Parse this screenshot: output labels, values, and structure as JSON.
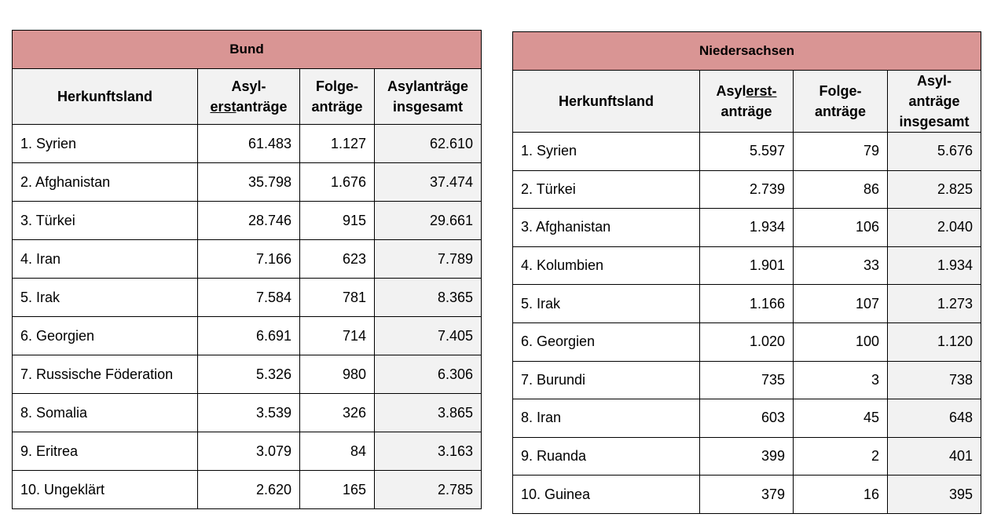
{
  "bund": {
    "title": "Bund",
    "headers": {
      "country": "Herkunftsland",
      "first_a": "Asyl-",
      "first_b_ul": "erst",
      "first_b_rest": "anträge",
      "follow_a": "Folge-",
      "follow_b": "anträge",
      "total_a": "Asylanträge",
      "total_b": "insgesamt"
    },
    "rows": [
      {
        "country": "1. Syrien",
        "first": "61.483",
        "follow": "1.127",
        "total": "62.610"
      },
      {
        "country": "2. Afghanistan",
        "first": "35.798",
        "follow": "1.676",
        "total": "37.474"
      },
      {
        "country": "3. Türkei",
        "first": "28.746",
        "follow": "915",
        "total": "29.661"
      },
      {
        "country": "4. Iran",
        "first": "7.166",
        "follow": "623",
        "total": "7.789"
      },
      {
        "country": "5. Irak",
        "first": "7.584",
        "follow": "781",
        "total": "8.365"
      },
      {
        "country": "6. Georgien",
        "first": "6.691",
        "follow": "714",
        "total": "7.405"
      },
      {
        "country": "7. Russische Föderation",
        "first": "5.326",
        "follow": "980",
        "total": "6.306"
      },
      {
        "country": "8. Somalia",
        "first": "3.539",
        "follow": "326",
        "total": "3.865"
      },
      {
        "country": "9. Eritrea",
        "first": "3.079",
        "follow": "84",
        "total": "3.163"
      },
      {
        "country": "10. Ungeklärt",
        "first": "2.620",
        "follow": "165",
        "total": "2.785"
      }
    ]
  },
  "niedersachsen": {
    "title": "Niedersachsen",
    "headers": {
      "country": "Herkunftsland",
      "first_a_pre": "Asyl",
      "first_a_ul": "erst",
      "first_a_post": "-",
      "first_b": "anträge",
      "follow_a": "Folge-",
      "follow_b": "anträge",
      "total_a": "Asyl-",
      "total_b": "anträge",
      "total_c": "insgesamt"
    },
    "rows": [
      {
        "country": "1. Syrien",
        "first": "5.597",
        "follow": "79",
        "total": "5.676"
      },
      {
        "country": "2. Türkei",
        "first": "2.739",
        "follow": "86",
        "total": "2.825"
      },
      {
        "country": "3. Afghanistan",
        "first": "1.934",
        "follow": "106",
        "total": "2.040"
      },
      {
        "country": "4. Kolumbien",
        "first": "1.901",
        "follow": "33",
        "total": "1.934"
      },
      {
        "country": "5. Irak",
        "first": "1.166",
        "follow": "107",
        "total": "1.273"
      },
      {
        "country": "6. Georgien",
        "first": "1.020",
        "follow": "100",
        "total": "1.120"
      },
      {
        "country": "7. Burundi",
        "first": "735",
        "follow": "3",
        "total": "738"
      },
      {
        "country": "8. Iran",
        "first": "603",
        "follow": "45",
        "total": "648"
      },
      {
        "country": "9. Ruanda",
        "first": "399",
        "follow": "2",
        "total": "401"
      },
      {
        "country": "10. Guinea",
        "first": "379",
        "follow": "16",
        "total": "395"
      }
    ]
  }
}
